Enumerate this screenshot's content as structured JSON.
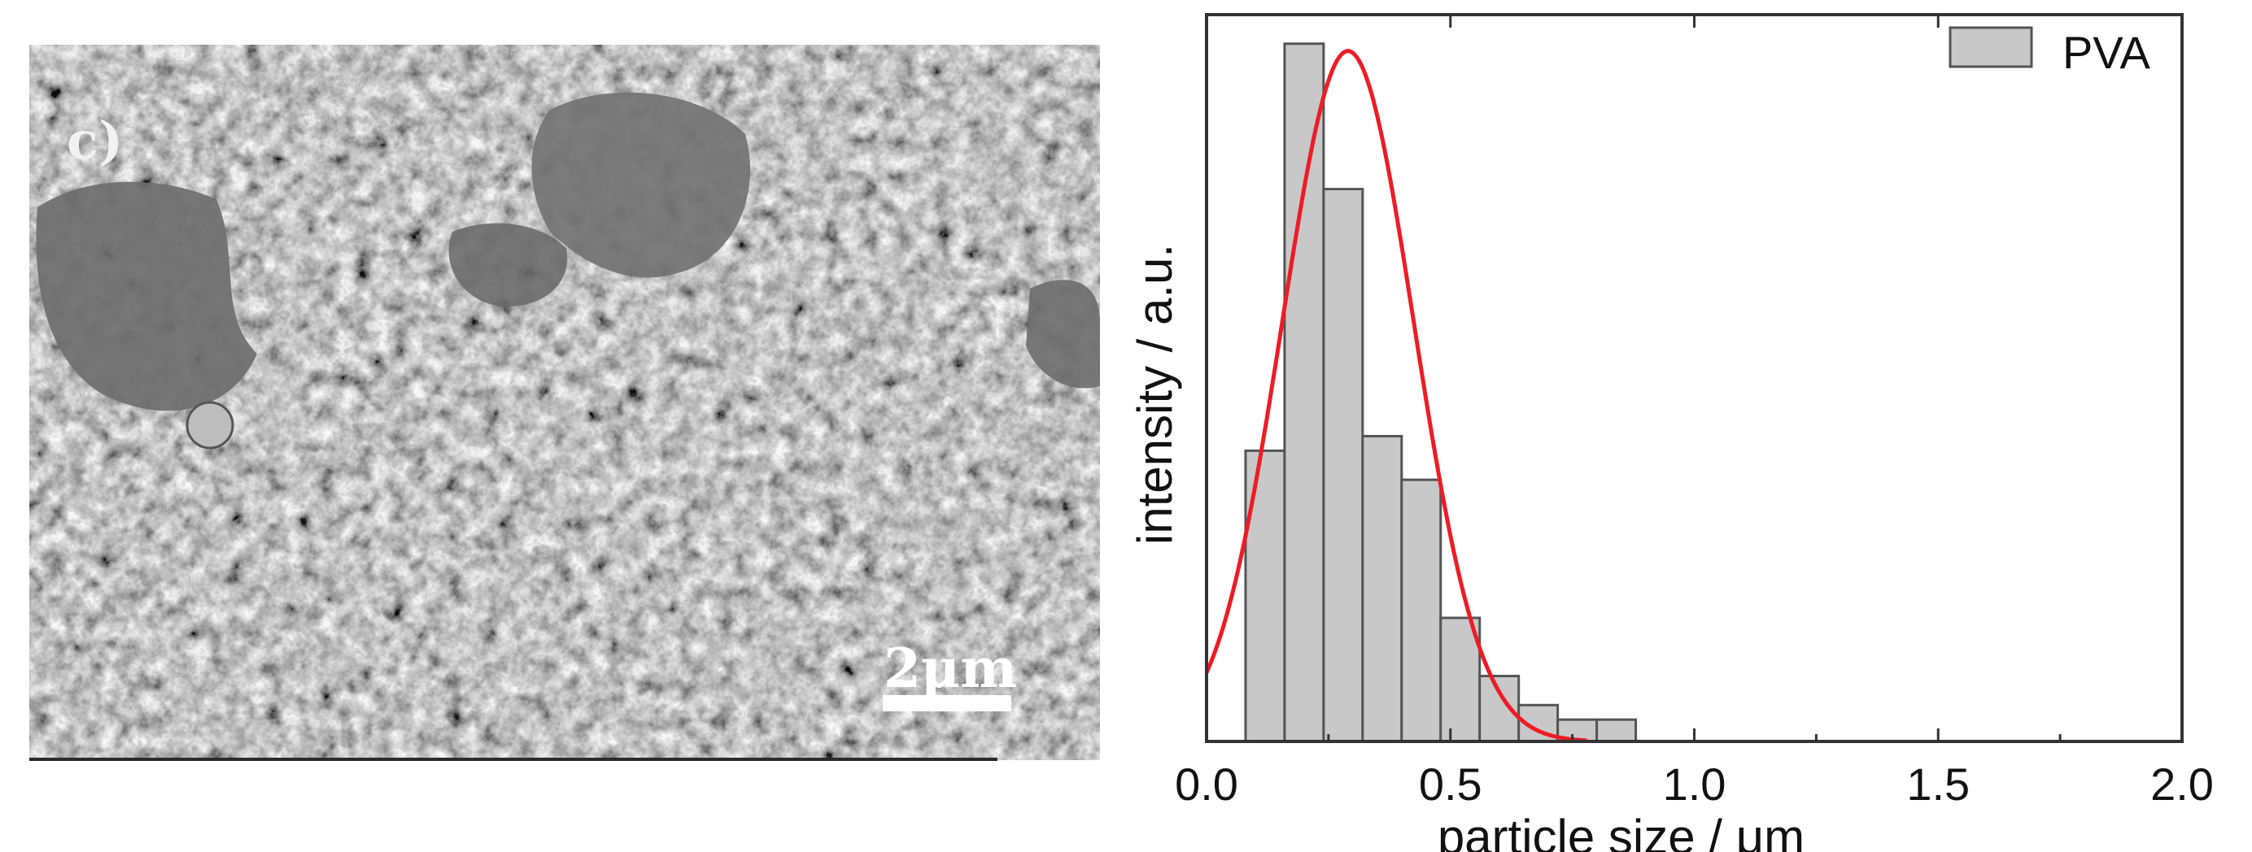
{
  "panel_label": "c)",
  "scale_bar": {
    "label": "2μm"
  },
  "colors": {
    "bar_fill": "#c8c8c8",
    "bar_stroke": "#555555",
    "fit_line": "#ee1c25",
    "axes": "#333333",
    "text": "#111111"
  },
  "chart_data": {
    "type": "bar",
    "subtype": "histogram-with-gaussian-fit",
    "xlabel": "particle size / μm",
    "ylabel": "intensity / a.u.",
    "xlim": [
      0.0,
      2.0
    ],
    "ylim": [
      0,
      100
    ],
    "xticks": [
      0.0,
      0.5,
      1.0,
      1.5,
      2.0
    ],
    "xtick_labels": [
      "0.0",
      "0.5",
      "1.0",
      "1.5",
      "2.0"
    ],
    "y_tick_labels_shown": false,
    "legend": {
      "position": "top-right",
      "entries": [
        "PVA"
      ]
    },
    "series": [
      {
        "name": "PVA",
        "bins": [
          {
            "x0": 0.08,
            "x1": 0.16,
            "value": 40
          },
          {
            "x0": 0.16,
            "x1": 0.24,
            "value": 96
          },
          {
            "x0": 0.24,
            "x1": 0.32,
            "value": 76
          },
          {
            "x0": 0.32,
            "x1": 0.4,
            "value": 42
          },
          {
            "x0": 0.4,
            "x1": 0.48,
            "value": 36
          },
          {
            "x0": 0.48,
            "x1": 0.56,
            "value": 17
          },
          {
            "x0": 0.56,
            "x1": 0.64,
            "value": 9
          },
          {
            "x0": 0.64,
            "x1": 0.72,
            "value": 5
          },
          {
            "x0": 0.72,
            "x1": 0.8,
            "value": 3
          },
          {
            "x0": 0.8,
            "x1": 0.88,
            "value": 3
          }
        ]
      },
      {
        "type": "line",
        "fit": "gaussian",
        "center": 0.29,
        "sigma": 0.135,
        "amplitude": 95,
        "x_range": [
          0.0,
          0.78
        ]
      }
    ]
  }
}
